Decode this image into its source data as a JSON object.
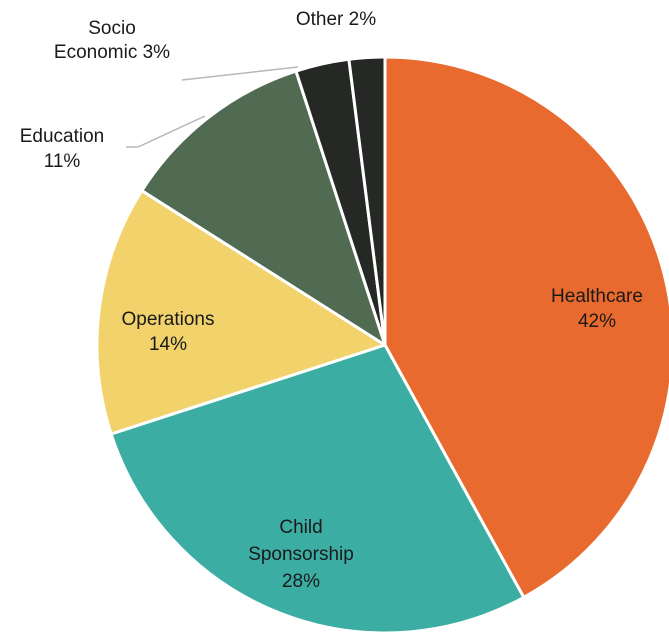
{
  "chart_data": {
    "type": "pie",
    "title": "",
    "slices": [
      {
        "key": "healthcare",
        "label": "Healthcare",
        "value": 42,
        "value_label": "42%",
        "color": "#e96a2e"
      },
      {
        "key": "child-sponsorship",
        "label": "Child Sponsorship",
        "value": 28,
        "value_label": "28%",
        "color": "#3bada3"
      },
      {
        "key": "operations",
        "label": "Operations",
        "value": 14,
        "value_label": "14%",
        "color": "#f1d26b"
      },
      {
        "key": "education",
        "label": "Education",
        "value": 11,
        "value_label": "11%",
        "color": "#506b52"
      },
      {
        "key": "socio-economic",
        "label": "Socio Economic",
        "value": 3,
        "value_label": "3%",
        "color": "#252824"
      },
      {
        "key": "other",
        "label": "Other",
        "value": 2,
        "value_label": "2%",
        "color": "#252824"
      }
    ],
    "legend": "none"
  }
}
